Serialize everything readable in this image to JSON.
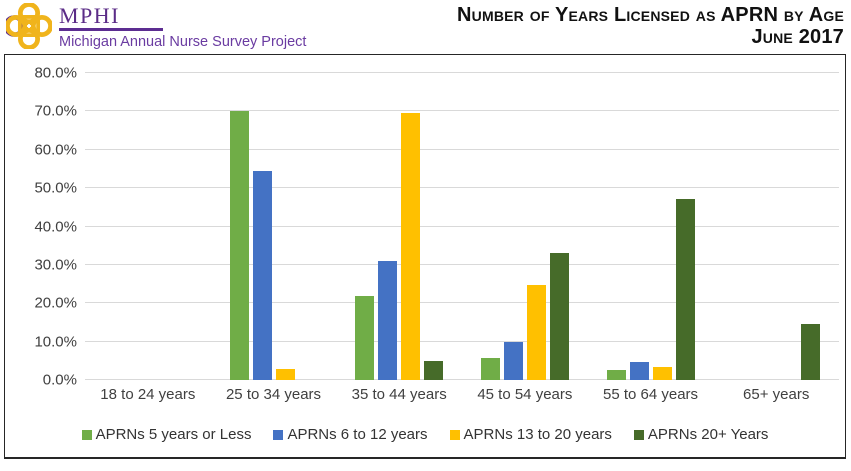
{
  "brand": {
    "name": "MPHI",
    "subtitle": "Michigan Annual Nurse Survey Project",
    "logo_icon": "mphi-knot-logo",
    "purple": "#5c2d91",
    "gold": "#f0b41c"
  },
  "title": {
    "line1": "Number of Years Licensed as APRN by Age",
    "line2": "June 2017"
  },
  "chart_data": {
    "type": "bar",
    "title": "Number of Years Licensed as APRN by Age",
    "subtitle": "June 2017",
    "categories": [
      "18 to 24 years",
      "25 to 34 years",
      "35 to 44 years",
      "45 to 54 years",
      "55 to 64 years",
      "65+ years"
    ],
    "series": [
      {
        "name": "APRNs 5 years or Less",
        "color": "#70AD47",
        "values": [
          0,
          70.0,
          21.8,
          5.7,
          2.6,
          0
        ]
      },
      {
        "name": "APRNs 6 to 12 years",
        "color": "#4472C4",
        "values": [
          0,
          54.5,
          30.9,
          9.8,
          4.7,
          0
        ]
      },
      {
        "name": "APRNs 13 to 20 years",
        "color": "#FFC000",
        "values": [
          0,
          2.8,
          69.5,
          24.7,
          3.4,
          0
        ]
      },
      {
        "name": "APRNs 20+ Years",
        "color": "#466B29",
        "values": [
          0,
          0,
          5.0,
          33.2,
          47.1,
          14.7
        ]
      }
    ],
    "ylim": [
      0,
      80
    ],
    "ytick_step": 10,
    "yticks": [
      "0.0%",
      "10.0%",
      "20.0%",
      "30.0%",
      "40.0%",
      "50.0%",
      "60.0%",
      "70.0%",
      "80.0%"
    ],
    "grid": true,
    "gridline_color": "#d9d9d9",
    "legend_position": "bottom"
  }
}
